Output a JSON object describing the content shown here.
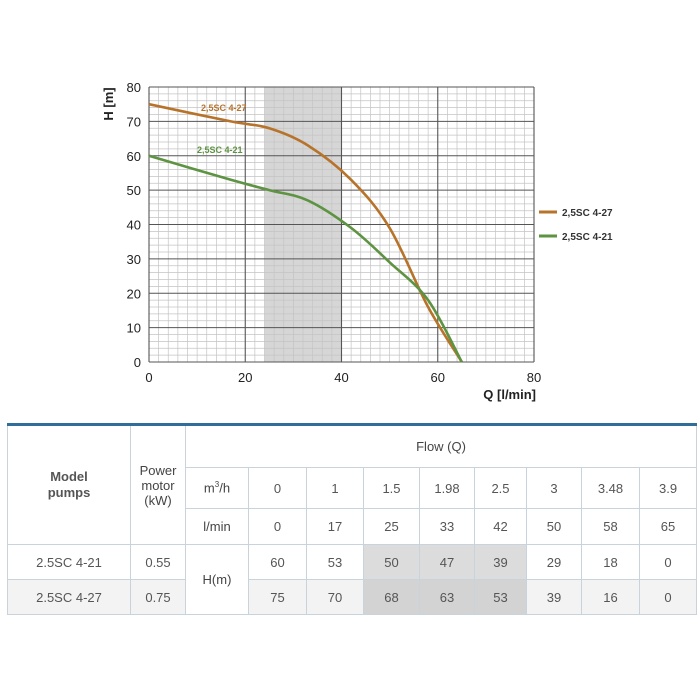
{
  "chart_data": {
    "type": "line",
    "xlabel": "Q [l/min]",
    "ylabel": "H [m]",
    "xlim": [
      0,
      80
    ],
    "ylim": [
      0,
      80
    ],
    "x_ticks": [
      "0",
      "20",
      "40",
      "60",
      "80"
    ],
    "y_ticks": [
      "0",
      "10",
      "20",
      "30",
      "40",
      "50",
      "60",
      "70",
      "80"
    ],
    "grid": true,
    "shaded_region": [
      24,
      40
    ],
    "legend_position": "right",
    "series": [
      {
        "name": "2,5SC 4-27",
        "color": "#b8732b",
        "x": [
          0,
          17,
          25,
          33,
          42,
          50,
          58,
          65
        ],
        "y": [
          75,
          70,
          68,
          63,
          53,
          39,
          16,
          0
        ]
      },
      {
        "name": "2,5SC 4-21",
        "color": "#5d9341",
        "x": [
          0,
          17,
          25,
          33,
          42,
          50,
          58,
          65
        ],
        "y": [
          60,
          53,
          50,
          47,
          39,
          29,
          18,
          0
        ]
      }
    ]
  },
  "table": {
    "model_header": [
      "Model",
      "pumps"
    ],
    "power_header": [
      "Power",
      "motor",
      "(kW)"
    ],
    "flow_header": "Flow (Q)",
    "unit_m3h": "m",
    "unit_m3h_sup": "3",
    "unit_m3h_rest": "/h",
    "unit_lmin": "l/min",
    "h_label": "H(m)",
    "m3h_values": [
      "0",
      "1",
      "1.5",
      "1.98",
      "2.5",
      "3",
      "3.48",
      "3.9"
    ],
    "lmin_values": [
      "0",
      "17",
      "25",
      "33",
      "42",
      "50",
      "58",
      "65"
    ],
    "rows": [
      {
        "model": "2.5SC 4-21",
        "power": "0.55",
        "h": [
          "60",
          "53",
          "50",
          "47",
          "39",
          "29",
          "18",
          "0"
        ]
      },
      {
        "model": "2.5SC 4-27",
        "power": "0.75",
        "h": [
          "75",
          "70",
          "68",
          "63",
          "53",
          "39",
          "16",
          "0"
        ]
      }
    ]
  }
}
